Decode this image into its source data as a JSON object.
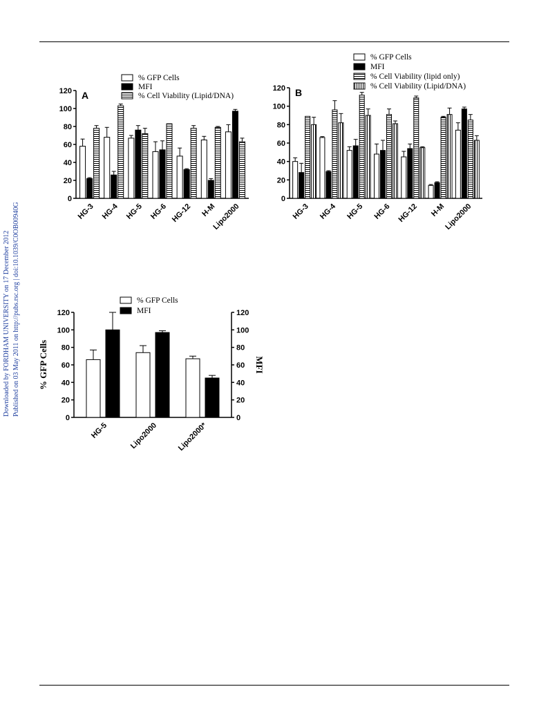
{
  "page": {
    "side_note_line1": "Downloaded by FORDHAM UNIVERSITY on 17 December 2012",
    "side_note_line2": "Published on 03 May 2011 on http://pubs.rsc.org | doi:10.1039/C0OB00940G",
    "side_note_color": "#1f3f9f"
  },
  "chart_data": [
    {
      "id": "A",
      "panel_label": "A",
      "type": "bar",
      "categories": [
        "HG-3",
        "HG-4",
        "HG-5",
        "HG-6",
        "HG-12",
        "H-M",
        "Lipo2000"
      ],
      "ylim": [
        0,
        120
      ],
      "yticks": [
        0,
        20,
        40,
        60,
        80,
        100,
        120
      ],
      "series": [
        {
          "name": "% GFP Cells",
          "pattern": "white",
          "values": [
            58,
            68,
            67,
            52,
            47,
            65,
            74
          ],
          "errors": [
            8,
            11,
            3,
            11,
            9,
            4,
            8
          ]
        },
        {
          "name": "MFI",
          "pattern": "black",
          "values": [
            22,
            26,
            76,
            54,
            32,
            20,
            97
          ],
          "errors": [
            1,
            4,
            5,
            10,
            1,
            2,
            2
          ]
        },
        {
          "name": "% Cell Viability (Lipid/DNA)",
          "pattern": "hstripe",
          "values": [
            78,
            103,
            72,
            83,
            78,
            79,
            63
          ],
          "errors": [
            3,
            2,
            6,
            0,
            3,
            1,
            4
          ]
        }
      ]
    },
    {
      "id": "B",
      "panel_label": "B",
      "type": "bar",
      "categories": [
        "HG-3",
        "HG-4",
        "HG-5",
        "HG-6",
        "HG-12",
        "H-M",
        "Lipo2000"
      ],
      "ylim": [
        0,
        120
      ],
      "yticks": [
        0,
        20,
        40,
        60,
        80,
        100,
        120
      ],
      "series": [
        {
          "name": "% GFP Cells",
          "pattern": "white",
          "values": [
            40,
            66,
            52,
            48,
            45,
            14,
            74
          ],
          "errors": [
            4,
            1,
            4,
            11,
            6,
            1,
            8
          ]
        },
        {
          "name": "MFI",
          "pattern": "black",
          "values": [
            28,
            29,
            57,
            52,
            54,
            17,
            97
          ],
          "errors": [
            10,
            1,
            7,
            11,
            5,
            1,
            2
          ]
        },
        {
          "name": "% Cell Viability (lipid only)",
          "pattern": "hstripe",
          "values": [
            89,
            96,
            112,
            91,
            109,
            88,
            85
          ],
          "errors": [
            0,
            10,
            3,
            6,
            2,
            1,
            6
          ]
        },
        {
          "name": "% Cell Viability (Lipid/DNA)",
          "pattern": "vstripe",
          "values": [
            80,
            82,
            90,
            81,
            55,
            91,
            63
          ],
          "errors": [
            8,
            10,
            7,
            3,
            1,
            7,
            5
          ]
        }
      ]
    },
    {
      "id": "C",
      "panel_label": "",
      "type": "bar",
      "categories": [
        "HG-5",
        "Lipo2000",
        "Lipo2000*"
      ],
      "ylabel": "% GFP Cells",
      "y2label": "MFI",
      "ylim": [
        0,
        120
      ],
      "y2lim": [
        0,
        120
      ],
      "yticks": [
        0,
        20,
        40,
        60,
        80,
        100,
        120
      ],
      "series": [
        {
          "name": "% GFP Cells",
          "pattern": "white",
          "axis": "left",
          "values": [
            66,
            74,
            67
          ],
          "errors": [
            11,
            8,
            3
          ]
        },
        {
          "name": "MFI",
          "pattern": "black",
          "axis": "right",
          "values": [
            100,
            97,
            45
          ],
          "errors": [
            20,
            2,
            3
          ]
        }
      ]
    }
  ]
}
